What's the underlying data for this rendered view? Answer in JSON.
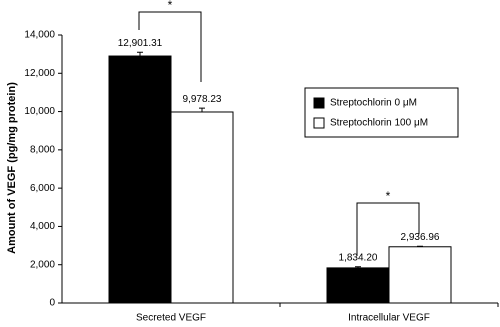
{
  "chart_data": {
    "type": "bar",
    "y_label": "Amount of VEGF (pg/mg protein)",
    "categories": [
      "Secreted VEGF",
      "Intracellular VEGF"
    ],
    "series": [
      {
        "name": "Streptochlorin 0 μM",
        "color": "#000000",
        "values": [
          12901.31,
          1834.2
        ],
        "value_labels": [
          "12,901.31",
          "1,834.20"
        ],
        "errors": [
          200,
          60
        ]
      },
      {
        "name": "Streptochlorin 100 μM",
        "color": "#ffffff",
        "values": [
          9978.23,
          2936.96
        ],
        "value_labels": [
          "9,978.23",
          "2,936.96"
        ],
        "errors": [
          200,
          30
        ]
      }
    ],
    "annotations": [
      "*",
      "*"
    ],
    "ylim": [
      0,
      14000
    ],
    "yticks": [
      0,
      {
        "value": 2000,
        "label": "2,000"
      },
      {
        "value": 4000,
        "label": "4,000"
      },
      {
        "value": 6000,
        "label": "6,000"
      },
      {
        "value": 8000,
        "label": "8,000"
      },
      {
        "value": 10000,
        "label": "10,000"
      },
      {
        "value": 12000,
        "label": "12,000"
      },
      {
        "value": 14000,
        "label": "14,000"
      }
    ]
  }
}
